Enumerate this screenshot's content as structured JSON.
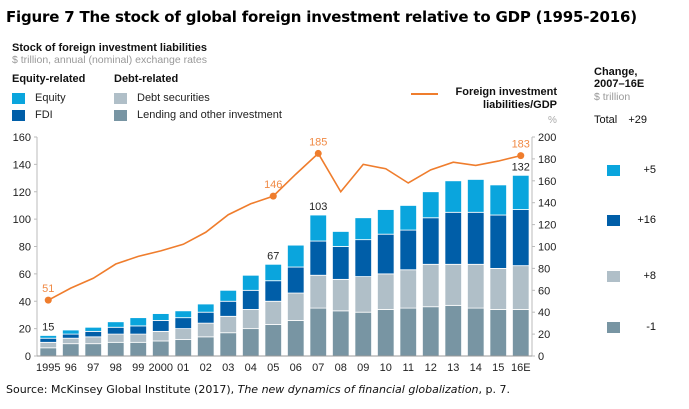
{
  "figure_title": "Figure 7 The stock of global foreign investment relative to GDP (1995-2016)",
  "source": {
    "prefix": "Source: McKinsey Global Institute (2017), ",
    "title": "The new dynamics of financial globalization",
    "suffix": ", p. 7."
  },
  "legend": {
    "equity_group": "Equity-related",
    "debt_group": "Debt-related",
    "items": [
      {
        "label": "Equity",
        "color": "#0aa5dd"
      },
      {
        "label": "FDI",
        "color": "#005ea8"
      },
      {
        "label": "Debt securities",
        "color": "#b0bfc8"
      },
      {
        "label": "Lending and other investment",
        "color": "#7895a3"
      }
    ],
    "line_label_1": "Foreign investment",
    "line_label_2": "liabilities/GDP",
    "line_unit": "%",
    "line_color": "#ef7d2d"
  },
  "change_panel": {
    "title_1": "Change,",
    "title_2": "2007–16E",
    "unit": "$ trillion",
    "total_label": "Total",
    "total_value": "+29",
    "rows": [
      {
        "series": "Equity",
        "value": "+5",
        "color": "#0aa5dd"
      },
      {
        "series": "FDI",
        "value": "+16",
        "color": "#005ea8"
      },
      {
        "series": "Debt securities",
        "value": "+8",
        "color": "#b0bfc8"
      },
      {
        "series": "Lending and other investment",
        "value": "-1",
        "color": "#7895a3"
      }
    ]
  },
  "chart_data": {
    "type": "bar",
    "stacked": true,
    "title": "Stock of foreign investment liabilities",
    "subtitle": "$ trillion, annual (nominal) exchange rates",
    "categories": [
      "1995",
      "96",
      "97",
      "98",
      "99",
      "2000",
      "01",
      "02",
      "03",
      "04",
      "05",
      "06",
      "07",
      "08",
      "09",
      "10",
      "11",
      "12",
      "13",
      "14",
      "15",
      "16E"
    ],
    "ylim": [
      0,
      160
    ],
    "yticks": [
      0,
      20,
      40,
      60,
      80,
      100,
      120,
      140,
      160
    ],
    "y2lim": [
      0,
      200
    ],
    "y2ticks": [
      0,
      20,
      40,
      60,
      80,
      100,
      120,
      140,
      160,
      180,
      200
    ],
    "y2label": "%",
    "series": [
      {
        "name": "Lending and other investment",
        "color": "#7895a3",
        "values": [
          6,
          9,
          9,
          10,
          10,
          11,
          12,
          14,
          17,
          20,
          23,
          26,
          35,
          33,
          32,
          34,
          35,
          36,
          37,
          35,
          34,
          34
        ]
      },
      {
        "name": "Debt securities",
        "color": "#b0bfc8",
        "values": [
          4,
          4,
          5,
          6,
          6,
          7,
          8,
          10,
          12,
          14,
          17,
          20,
          24,
          23,
          26,
          26,
          28,
          31,
          30,
          32,
          30,
          32
        ]
      },
      {
        "name": "FDI",
        "color": "#005ea8",
        "values": [
          3,
          3,
          4,
          5,
          6,
          8,
          8,
          8,
          11,
          14,
          15,
          19,
          25,
          24,
          27,
          29,
          29,
          34,
          38,
          38,
          39,
          41
        ]
      },
      {
        "name": "Equity",
        "color": "#0aa5dd",
        "values": [
          2,
          3,
          3,
          4,
          6,
          5,
          5,
          6,
          8,
          11,
          12,
          16,
          19,
          11,
          16,
          18,
          18,
          19,
          23,
          24,
          22,
          25
        ]
      }
    ],
    "bar_labels": [
      {
        "category": "1995",
        "text": "15"
      },
      {
        "category": "05",
        "text": "67"
      },
      {
        "category": "07",
        "text": "103"
      },
      {
        "category": "16E",
        "text": "132"
      }
    ],
    "line": {
      "name": "Foreign investment liabilities/GDP",
      "axis": "right",
      "color": "#ef7d2d",
      "values": [
        51,
        62,
        71,
        84,
        91,
        96,
        102,
        113,
        129,
        139,
        146,
        166,
        185,
        150,
        175,
        171,
        158,
        170,
        177,
        174,
        178,
        183
      ],
      "labels": [
        {
          "category": "1995",
          "text": "51"
        },
        {
          "category": "05",
          "text": "146"
        },
        {
          "category": "07",
          "text": "185"
        },
        {
          "category": "16E",
          "text": "183"
        }
      ]
    },
    "grid": false,
    "legend_position": "top"
  }
}
